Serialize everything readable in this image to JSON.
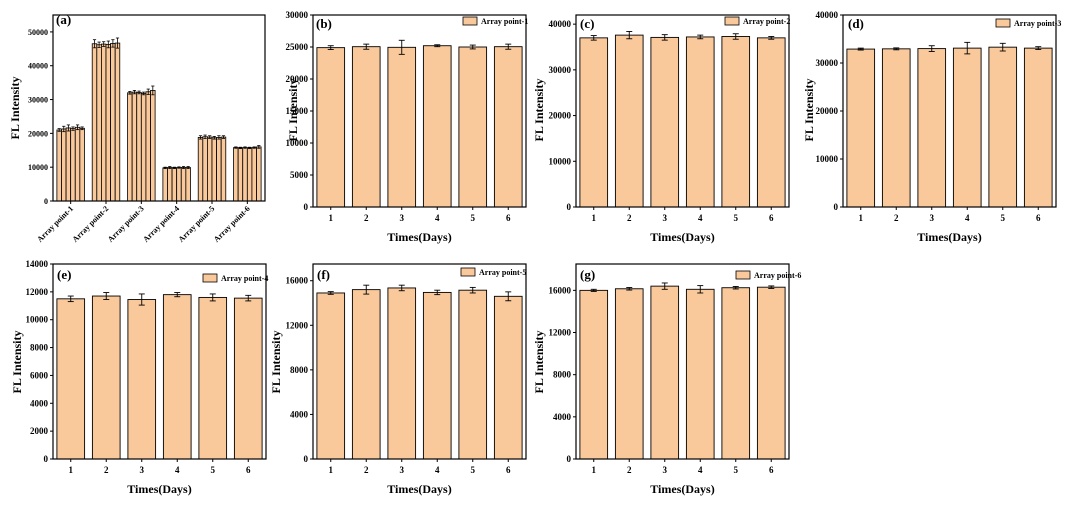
{
  "figure": {
    "colors": {
      "bar_fill": "#f9c89b",
      "bar_stroke": "#000000",
      "axis": "#000000"
    }
  },
  "chart_data": [
    {
      "panel": "(a)",
      "type": "bar",
      "ylabel": "FL Intensity",
      "xlabel": "",
      "ylim": [
        0,
        55000
      ],
      "yticks": [
        0,
        10000,
        20000,
        30000,
        40000,
        50000
      ],
      "categories": [
        "Array point-1",
        "Array point-2",
        "Array point-3",
        "Array point-4",
        "Array point-5",
        "Array point-6"
      ],
      "groups_per_category": 6,
      "values": [
        [
          21000,
          21300,
          21600,
          21400,
          21800,
          21500
        ],
        [
          46500,
          46200,
          46400,
          46300,
          46600,
          46700
        ],
        [
          32000,
          32200,
          32100,
          31800,
          32300,
          32700
        ],
        [
          9800,
          9900,
          9800,
          9900,
          9900,
          9900
        ],
        [
          18800,
          19000,
          18900,
          18700,
          18800,
          18900
        ],
        [
          15800,
          15700,
          15800,
          15700,
          15800,
          16000
        ]
      ],
      "errors": [
        [
          400,
          800,
          900,
          500,
          700,
          400
        ],
        [
          1200,
          800,
          700,
          1000,
          1100,
          1500
        ],
        [
          400,
          500,
          400,
          400,
          800,
          1300
        ],
        [
          200,
          300,
          200,
          200,
          300,
          300
        ],
        [
          500,
          500,
          400,
          400,
          500,
          400
        ],
        [
          200,
          200,
          200,
          200,
          200,
          400
        ]
      ]
    },
    {
      "panel": "(b)",
      "type": "bar",
      "legend": "Array point-1",
      "ylabel": "FL Intensity",
      "xlabel": "Times(Days)",
      "ylim": [
        0,
        30000
      ],
      "yticks": [
        0,
        5000,
        10000,
        15000,
        20000,
        25000,
        30000
      ],
      "categories": [
        "1",
        "2",
        "3",
        "4",
        "5",
        "6"
      ],
      "values": [
        24900,
        25050,
        24950,
        25200,
        25000,
        25050
      ],
      "errors": [
        300,
        400,
        1100,
        150,
        300,
        400
      ]
    },
    {
      "panel": "(c)",
      "type": "bar",
      "legend": "Array point-2",
      "ylabel": "FL Intensity",
      "xlabel": "Times(Days)",
      "ylim": [
        0,
        42000
      ],
      "yticks": [
        0,
        10000,
        20000,
        30000,
        40000
      ],
      "categories": [
        "1",
        "2",
        "3",
        "4",
        "5",
        "6"
      ],
      "values": [
        37000,
        37600,
        37100,
        37200,
        37300,
        37000
      ],
      "errors": [
        500,
        800,
        600,
        400,
        600,
        300
      ]
    },
    {
      "panel": "(d)",
      "type": "bar",
      "legend": "Array point-3",
      "ylabel": "FL Intensity",
      "xlabel": "Times(Days)",
      "ylim": [
        0,
        40000
      ],
      "yticks": [
        0,
        10000,
        20000,
        30000,
        40000
      ],
      "categories": [
        "1",
        "2",
        "3",
        "4",
        "5",
        "6"
      ],
      "values": [
        32900,
        32950,
        33000,
        33100,
        33300,
        33100
      ],
      "errors": [
        200,
        200,
        600,
        1200,
        800,
        300
      ]
    },
    {
      "panel": "(e)",
      "type": "bar",
      "legend": "Array point-4",
      "ylabel": "FL Intensity",
      "xlabel": "Times(Days)",
      "ylim": [
        0,
        14000
      ],
      "yticks": [
        0,
        2000,
        4000,
        6000,
        8000,
        10000,
        12000,
        14000
      ],
      "categories": [
        "1",
        "2",
        "3",
        "4",
        "5",
        "6"
      ],
      "values": [
        11500,
        11700,
        11450,
        11800,
        11600,
        11550
      ],
      "errors": [
        200,
        250,
        400,
        150,
        250,
        200
      ]
    },
    {
      "panel": "(f)",
      "type": "bar",
      "legend": "Array point-5",
      "ylabel": "FL Intensity",
      "xlabel": "Times(Days)",
      "ylim": [
        0,
        17500
      ],
      "yticks": [
        0,
        4000,
        8000,
        12000,
        16000
      ],
      "categories": [
        "1",
        "2",
        "3",
        "4",
        "5",
        "6"
      ],
      "values": [
        14900,
        15200,
        15350,
        14950,
        15150,
        14600
      ],
      "errors": [
        120,
        400,
        250,
        200,
        250,
        400
      ]
    },
    {
      "panel": "(g)",
      "type": "bar",
      "legend": "Array point-6",
      "ylabel": "FL Intensity",
      "xlabel": "Times(Days)",
      "ylim": [
        0,
        18500
      ],
      "yticks": [
        0,
        4000,
        8000,
        12000,
        16000
      ],
      "categories": [
        "1",
        "2",
        "3",
        "4",
        "5",
        "6"
      ],
      "values": [
        16000,
        16150,
        16400,
        16100,
        16250,
        16300
      ],
      "errors": [
        100,
        120,
        300,
        350,
        120,
        120
      ]
    }
  ]
}
